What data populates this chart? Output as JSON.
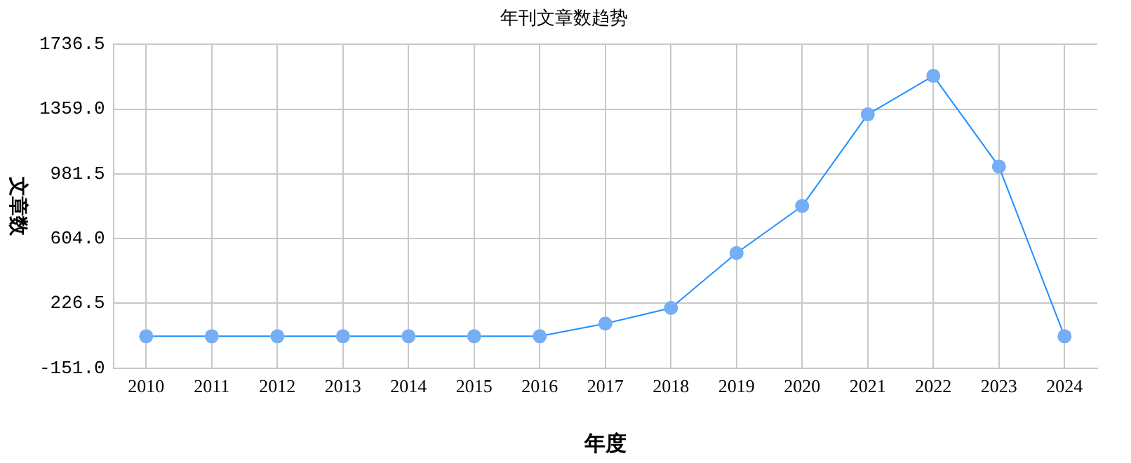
{
  "chart_data": {
    "type": "line",
    "title": "年刊文章数趋势",
    "xlabel": "年度",
    "ylabel": "文章数",
    "categories": [
      "2010",
      "2011",
      "2012",
      "2013",
      "2014",
      "2015",
      "2016",
      "2017",
      "2018",
      "2019",
      "2020",
      "2021",
      "2022",
      "2023",
      "2024"
    ],
    "series": [
      {
        "color": "#1e90ff",
        "values": [
          35,
          35,
          35,
          35,
          35,
          35,
          35,
          109,
          200,
          520,
          794,
          1328,
          1553,
          1024,
          35
        ]
      }
    ],
    "ylim": [
      -151.0,
      1736.5
    ],
    "yticks": [
      {
        "value": -151.0,
        "label": "-151.0"
      },
      {
        "value": 226.5,
        "label": "226.5"
      },
      {
        "value": 604.0,
        "label": "604.0"
      },
      {
        "value": 981.5,
        "label": "981.5"
      },
      {
        "value": 1359.0,
        "label": "1359.0"
      },
      {
        "value": 1736.5,
        "label": "1736.5"
      }
    ],
    "grid": true,
    "legend": false,
    "marker": "circle",
    "line_style": "solid"
  }
}
